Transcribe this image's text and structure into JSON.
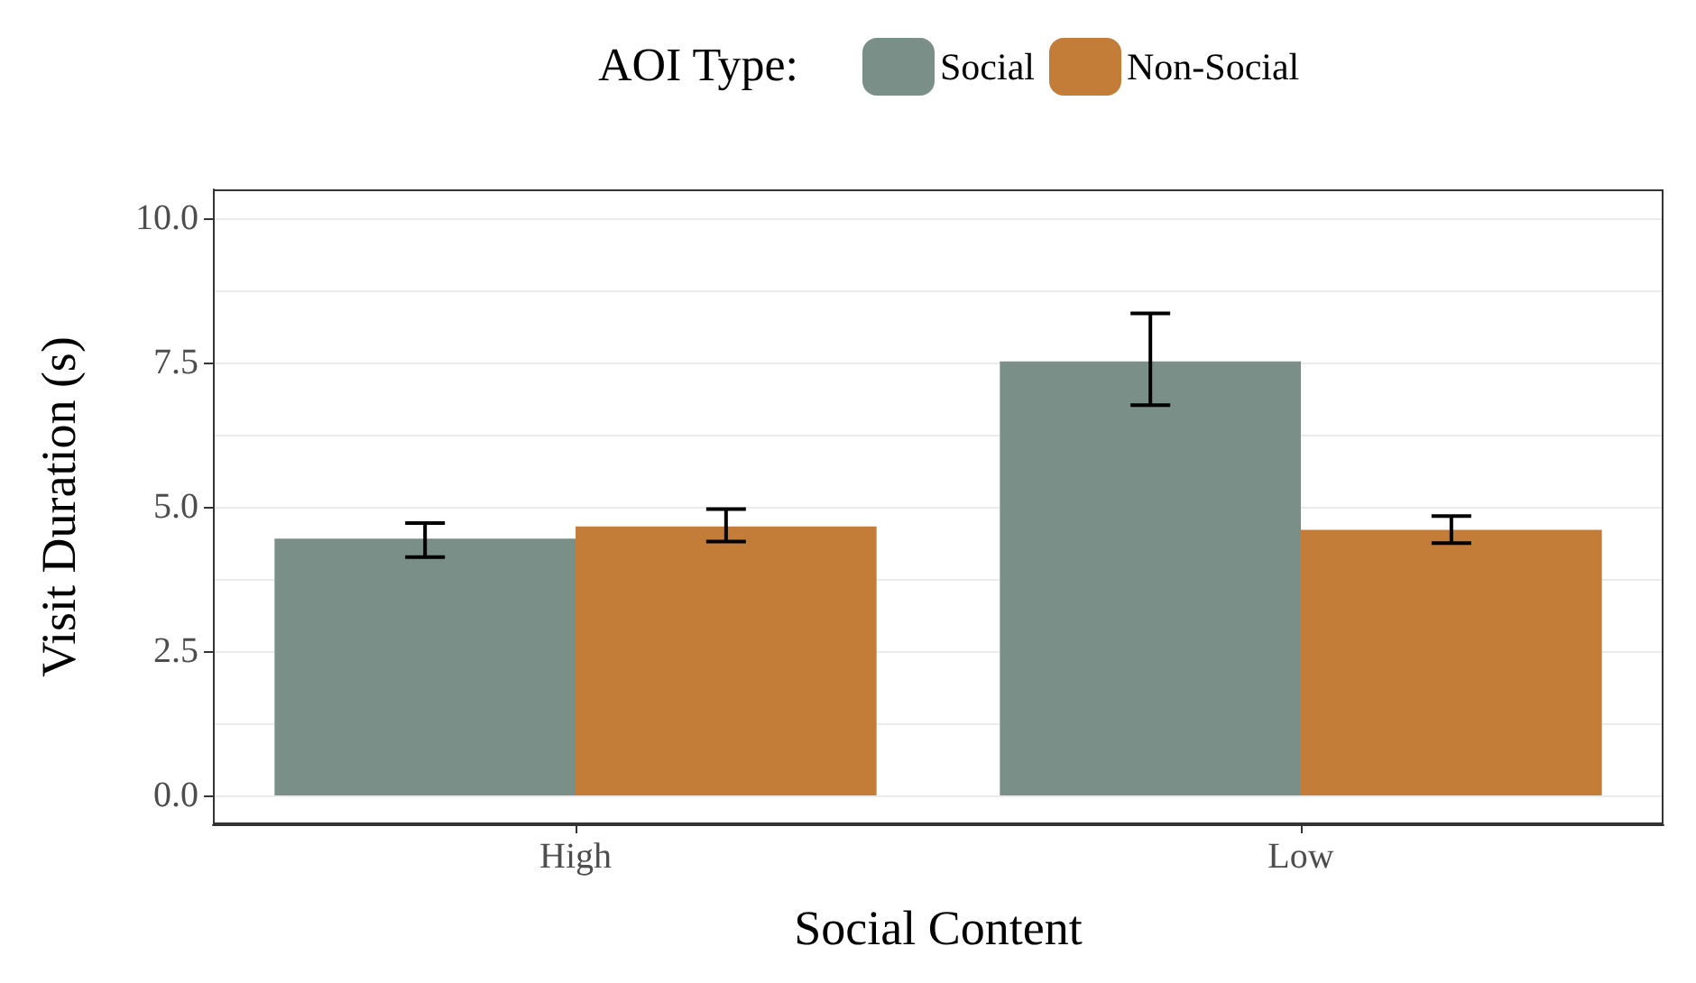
{
  "chart_data": {
    "type": "bar",
    "xlabel": "Social Content",
    "ylabel": "Visit Duration (s)",
    "legend_title": "AOI Type:",
    "categories": [
      "High",
      "Low"
    ],
    "series": [
      {
        "name": "Social",
        "color": "#7a8f87",
        "values": [
          4.45,
          7.52
        ],
        "errors": [
          [
            4.13,
            4.72
          ],
          [
            6.76,
            8.35
          ]
        ]
      },
      {
        "name": "Non-Social",
        "color": "#c47d38",
        "values": [
          4.66,
          4.6
        ],
        "errors": [
          [
            4.4,
            4.96
          ],
          [
            4.37,
            4.84
          ]
        ]
      }
    ],
    "ylim": [
      -0.5,
      10.5
    ],
    "yticks": [
      {
        "value": 0,
        "label": "0.0"
      },
      {
        "value": 2.5,
        "label": "2.5"
      },
      {
        "value": 5,
        "label": "5.0"
      },
      {
        "value": 7.5,
        "label": "7.5"
      },
      {
        "value": 10,
        "label": "10.0"
      }
    ],
    "grid": "y",
    "legend": "top"
  }
}
